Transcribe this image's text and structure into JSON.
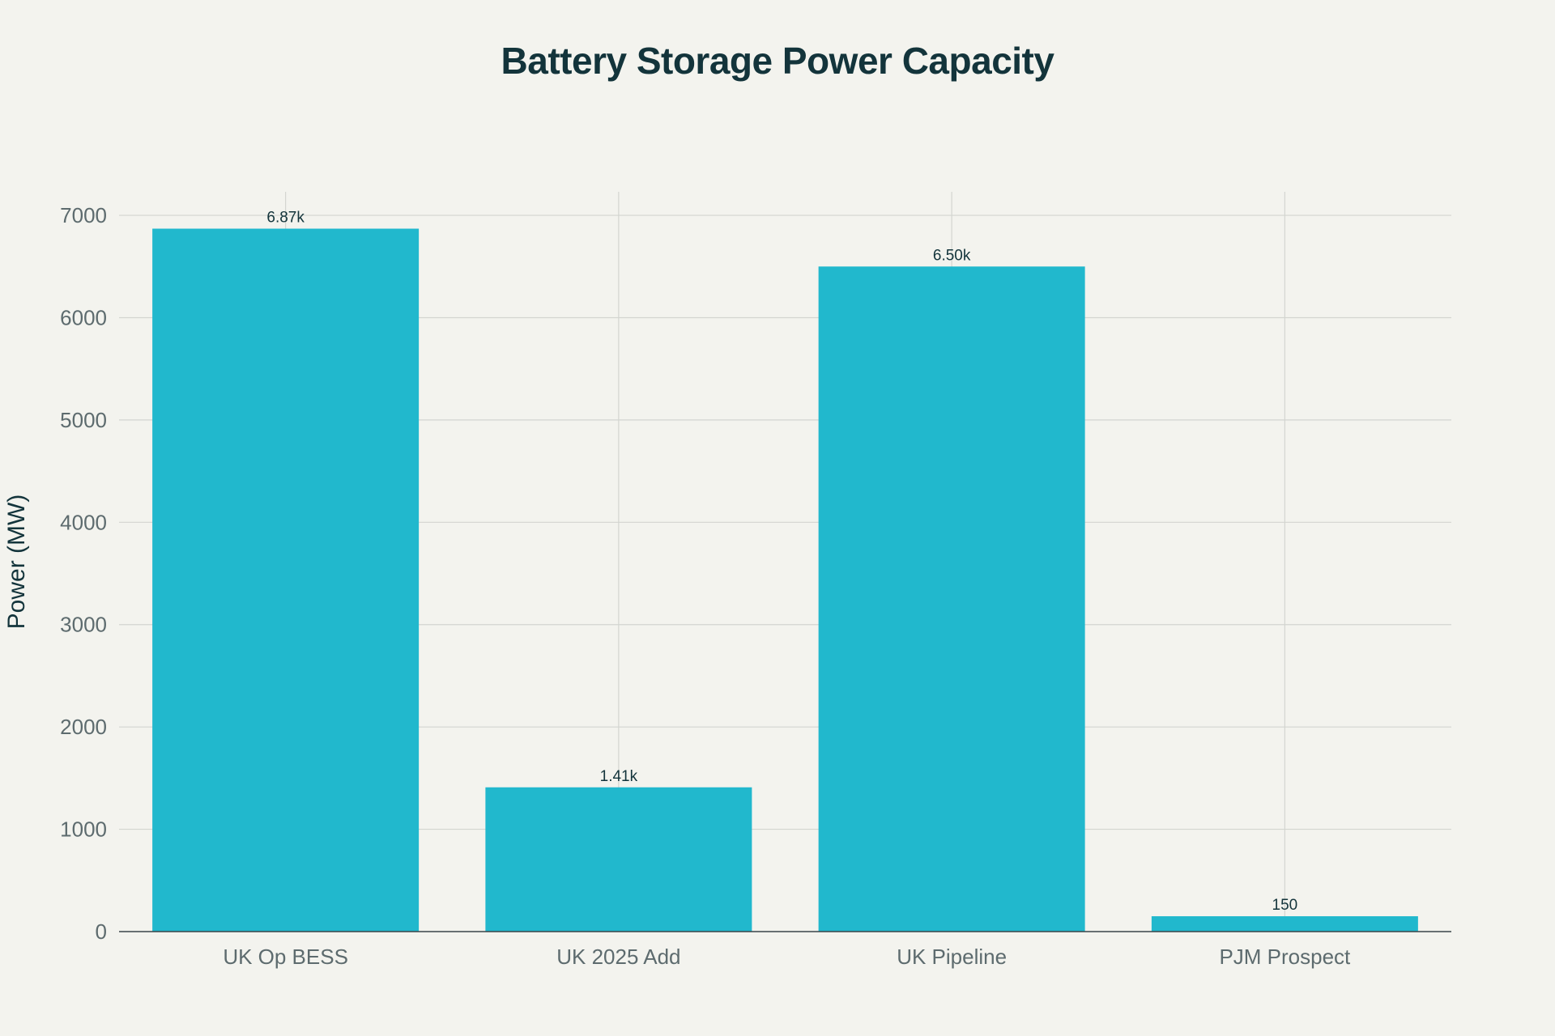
{
  "chart_data": {
    "type": "bar",
    "title": "Battery Storage Power Capacity",
    "xlabel": "",
    "ylabel": "Power (MW)",
    "categories": [
      "UK Op BESS",
      "UK 2025 Add",
      "UK Pipeline",
      "PJM Prospect"
    ],
    "values": [
      6870,
      1410,
      6500,
      150
    ],
    "data_labels": [
      "6.87k",
      "1.41k",
      "6.50k",
      "150"
    ],
    "ylim": [
      0,
      7230
    ],
    "yticks": [
      0,
      1000,
      2000,
      3000,
      4000,
      5000,
      6000,
      7000
    ],
    "grid": true,
    "legend": "none",
    "colors": {
      "bar": "#21b8cd",
      "grid": "#d3d5d0",
      "axis": "#3b4548",
      "background": "#f3f3ee"
    }
  }
}
